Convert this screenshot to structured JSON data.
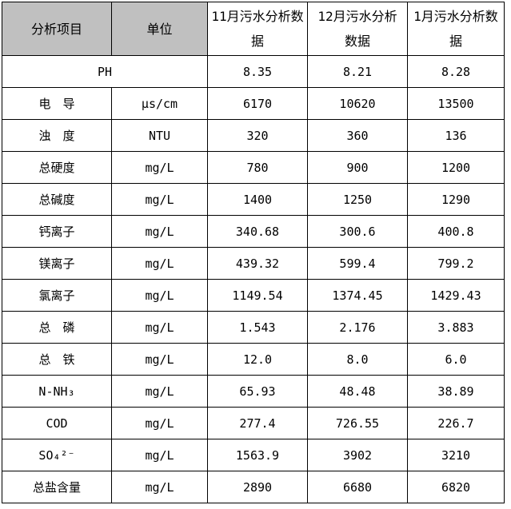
{
  "header": [
    "分析项目",
    "单位",
    "11月污水分析数据",
    "12月污水分析数据",
    "1月污水分析数据"
  ],
  "header_bg": "#c0c0c0",
  "ph_row": {
    "label": "PH",
    "values": [
      "8.35",
      "8.21",
      "8.28"
    ]
  },
  "rows": [
    {
      "item": "电　导",
      "unit": "μs/cm",
      "values": [
        "6170",
        "10620",
        "13500"
      ]
    },
    {
      "item": "浊　度",
      "unit": "NTU",
      "values": [
        "320",
        "360",
        "136"
      ]
    },
    {
      "item": "总硬度",
      "unit": "mg/L",
      "values": [
        "780",
        "900",
        "1200"
      ]
    },
    {
      "item": "总碱度",
      "unit": "mg/L",
      "values": [
        "1400",
        "1250",
        "1290"
      ]
    },
    {
      "item": "钙离子",
      "unit": "mg/L",
      "values": [
        "340.68",
        "300.6",
        "400.8"
      ]
    },
    {
      "item": "镁离子",
      "unit": "mg/L",
      "values": [
        "439.32",
        "599.4",
        "799.2"
      ]
    },
    {
      "item": "氯离子",
      "unit": "mg/L",
      "values": [
        "1149.54",
        "1374.45",
        "1429.43"
      ]
    },
    {
      "item": "总　磷",
      "unit": "mg/L",
      "values": [
        "1.543",
        "2.176",
        "3.883"
      ]
    },
    {
      "item": "总　铁",
      "unit": "mg/L",
      "values": [
        "12.0",
        "8.0",
        "6.0"
      ]
    },
    {
      "item": "N-NH₃",
      "unit": "mg/L",
      "values": [
        "65.93",
        "48.48",
        "38.89"
      ]
    },
    {
      "item": "COD",
      "unit": "mg/L",
      "values": [
        "277.4",
        "726.55",
        "226.7"
      ]
    },
    {
      "item": "SO₄²⁻",
      "unit": "mg/L",
      "values": [
        "1563.9",
        "3902",
        "3210"
      ]
    },
    {
      "item": "总盐含量",
      "unit": "mg/L",
      "values": [
        "2890",
        "6680",
        "6820"
      ]
    }
  ]
}
